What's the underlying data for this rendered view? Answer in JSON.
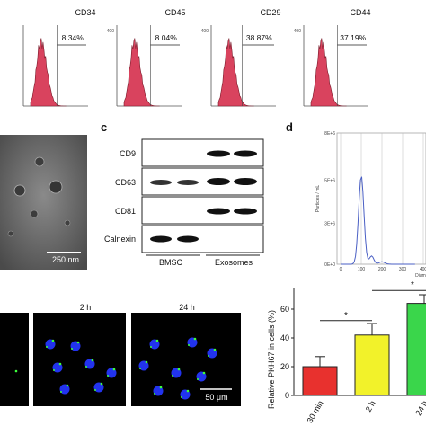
{
  "flow": {
    "panels": [
      {
        "marker": "CD34",
        "percent": "8.34%"
      },
      {
        "marker": "CD45",
        "percent": "8.04%"
      },
      {
        "marker": "CD29",
        "percent": "38.87%"
      },
      {
        "marker": "CD44",
        "percent": "37.19%"
      }
    ],
    "ymax_tick": "400",
    "ymid_tick": "",
    "fill_color": "#d9435e"
  },
  "tem": {
    "scale_bar": "250 nm"
  },
  "western": {
    "letter": "c",
    "bands": [
      "CD9",
      "CD63",
      "CD81",
      "Calnexin"
    ],
    "groups": [
      "BMSC",
      "Exosomes"
    ]
  },
  "nta": {
    "letter": "d",
    "y_ticks": [
      "8E+6",
      "5E+6",
      "3E+6",
      "0E+0"
    ],
    "y_label": "Particles / mL",
    "x_ticks": [
      "0",
      "100",
      "200",
      "300",
      "400"
    ],
    "x_label": "Diam",
    "line_color": "#4a5fc4"
  },
  "uptake": {
    "timepoints": [
      "2 h",
      "24 h"
    ],
    "scale_bar": "50 μm"
  },
  "chart_data": {
    "type": "bar",
    "categories": [
      "30 min",
      "2 h",
      "24 h"
    ],
    "values": [
      20,
      42,
      64
    ],
    "errors": [
      7,
      8,
      6
    ],
    "colors": [
      "#e8312e",
      "#f2f22a",
      "#3ad64b"
    ],
    "ylabel": "Relative PKH67 in cells (%)",
    "yticks": [
      0,
      20,
      40,
      60
    ],
    "ylim": [
      0,
      75
    ],
    "significance": [
      "*",
      "*"
    ]
  }
}
